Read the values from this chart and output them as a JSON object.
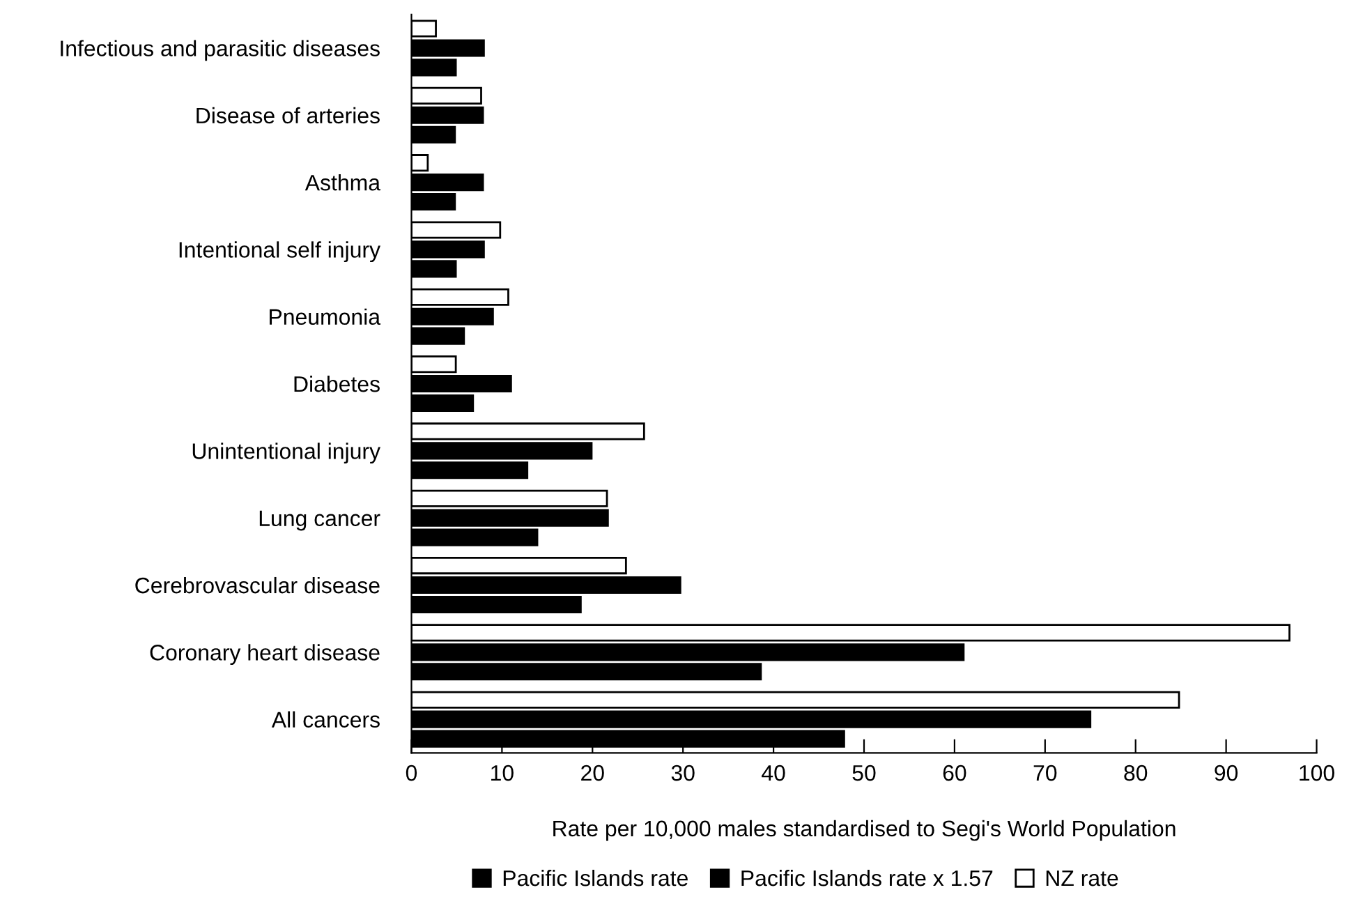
{
  "chart_data": {
    "type": "bar",
    "orientation": "horizontal",
    "categories": [
      "Infectious and parasitic diseases",
      "Disease of arteries",
      "Asthma",
      "Intentional self injury",
      "Pneumonia",
      "Diabetes",
      "Unintentional injury",
      "Lung cancer",
      "Cerebrovascular disease",
      "Coronary heart disease",
      "All cancers"
    ],
    "series": [
      {
        "name": "NZ rate",
        "color": "#ffffff",
        "values": [
          2.7,
          7.7,
          1.8,
          9.8,
          10.7,
          4.9,
          25.7,
          21.6,
          23.7,
          97.0,
          84.8
        ]
      },
      {
        "name": "Pacific Islands rate x 1.57",
        "color": "#000000",
        "values": [
          8.0,
          7.9,
          7.9,
          8.0,
          9.0,
          11.0,
          19.9,
          21.7,
          29.7,
          61.0,
          75.0
        ]
      },
      {
        "name": "Pacific Islands rate",
        "color": "#000000",
        "values": [
          4.9,
          4.8,
          4.8,
          4.9,
          5.8,
          6.8,
          12.8,
          13.9,
          18.7,
          38.6,
          47.8
        ]
      }
    ],
    "xlabel": "Rate per 10,000 males standardised to Segi's World Population",
    "xlim": [
      0,
      100
    ],
    "xticks": [
      0,
      10,
      20,
      30,
      40,
      50,
      60,
      70,
      80,
      90,
      100
    ],
    "grid": false,
    "legend": "bottom"
  }
}
